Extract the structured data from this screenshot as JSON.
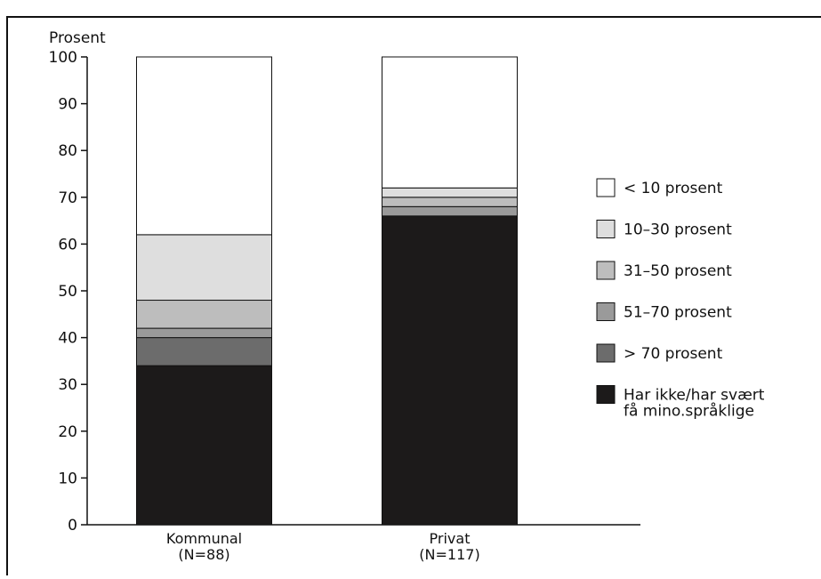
{
  "chart_data": {
    "type": "bar",
    "stacked": true,
    "ylabel": "Prosent",
    "ylim": [
      0,
      100
    ],
    "yticks": [
      0,
      10,
      20,
      30,
      40,
      50,
      60,
      70,
      80,
      90,
      100
    ],
    "categories": [
      "Kommunal",
      "Privat"
    ],
    "category_sublabels": [
      "(N=88)",
      "(N=117)"
    ],
    "grid": false,
    "legend_position": "right",
    "series": [
      {
        "name": "Har ikke/har svært få mino.språklige",
        "values": [
          34,
          66
        ],
        "color": "#1c1a1a"
      },
      {
        "name": "> 70 prosent",
        "values": [
          6,
          0
        ],
        "color": "#6c6c6c"
      },
      {
        "name": "51–70 prosent",
        "values": [
          2,
          2
        ],
        "color": "#9a9a9a"
      },
      {
        "name": "31–50 prosent",
        "values": [
          6,
          2
        ],
        "color": "#bdbdbd"
      },
      {
        "name": "10–30 prosent",
        "values": [
          14,
          2
        ],
        "color": "#dedede"
      },
      {
        "name": "< 10 prosent",
        "values": [
          38,
          28
        ],
        "color": "#ffffff"
      }
    ],
    "legend_order": [
      "< 10 prosent",
      "10–30 prosent",
      "31–50 prosent",
      "51–70 prosent",
      "> 70 prosent",
      "Har ikke/har svært få mino.språklige"
    ]
  }
}
